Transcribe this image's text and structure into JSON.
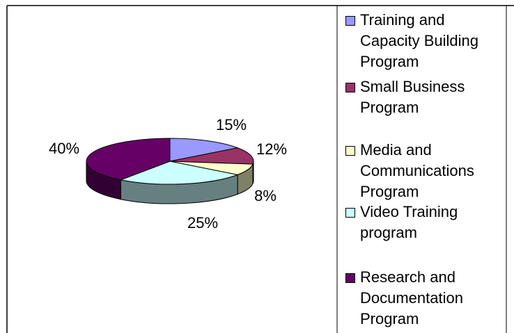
{
  "chart_data": {
    "type": "pie",
    "categories": [
      "Training and Capacity Building Program",
      "Small Business Program",
      "Media and Communications Program",
      "Video Training program",
      "Research and Documentation Program"
    ],
    "values": [
      15,
      12,
      8,
      25,
      40
    ],
    "value_labels": [
      "15%",
      "12%",
      "8%",
      "25%",
      "40%"
    ],
    "colors": [
      "#9999ff",
      "#993366",
      "#ffffcc",
      "#ccffff",
      "#660066"
    ],
    "legend": "right"
  }
}
